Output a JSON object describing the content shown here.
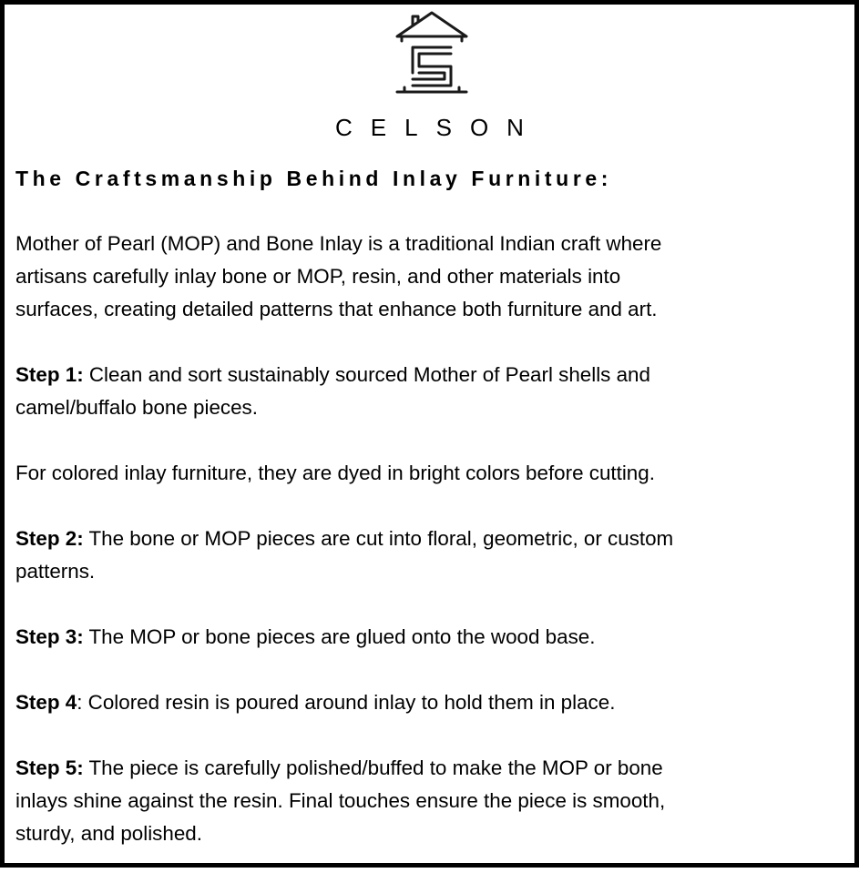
{
  "brand": {
    "name": "CELSON",
    "logo_icon": "house-s-logo-icon"
  },
  "heading": "The Craftsmanship Behind Inlay Furniture:",
  "intro": [
    "Mother of Pearl (MOP) and Bone Inlay is a traditional Indian craft where",
    "artisans carefully inlay bone or MOP, resin, and other materials into",
    "surfaces, creating detailed patterns that enhance both furniture and art."
  ],
  "step1": {
    "label": "Step 1:",
    "lines": [
      " Clean and sort sustainably sourced Mother of Pearl shells and",
      "camel/buffalo bone pieces."
    ]
  },
  "note": "For colored inlay furniture, they are dyed in bright colors before cutting.",
  "step2": {
    "label": "Step 2:",
    "lines": [
      " The bone or MOP pieces are cut into floral, geometric, or custom",
      "patterns."
    ]
  },
  "step3": {
    "label": "Step 3:",
    "lines": [
      " The MOP or bone pieces are glued onto the wood base."
    ]
  },
  "step4": {
    "label": "Step 4",
    "lines": [
      ": Colored resin is poured around inlay to hold them in place."
    ]
  },
  "step5": {
    "label": "Step 5:",
    "lines": [
      " The piece is carefully polished/buffed to make the MOP or bone",
      "inlays shine against the resin. Final touches ensure the piece is smooth,",
      "sturdy, and polished."
    ]
  }
}
